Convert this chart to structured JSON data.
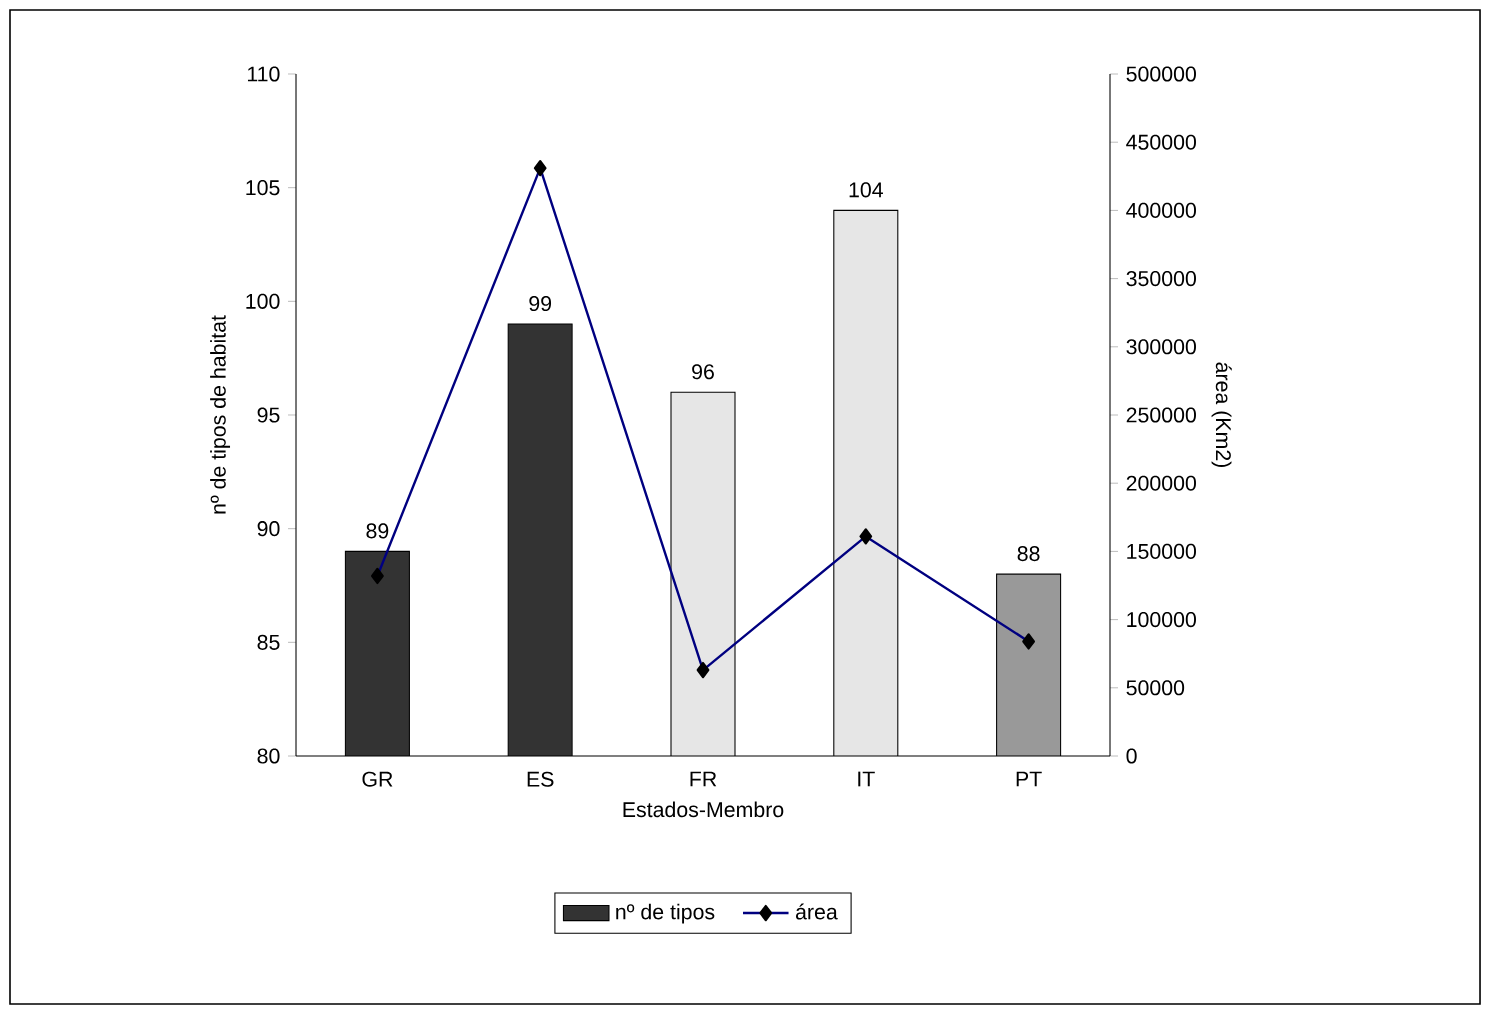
{
  "chart_data": {
    "type": "bar",
    "xlabel": "Estados-Membro",
    "ylabel": "nº de tipos de habitat",
    "y2label": "área (Km2)",
    "categories": [
      "GR",
      "ES",
      "FR",
      "IT",
      "PT"
    ],
    "series": [
      {
        "name": "nº de tipos",
        "colors": [
          "#333333",
          "#333333",
          "#e6e6e6",
          "#e6e6e6",
          "#999999"
        ],
        "values": [
          89,
          99,
          96,
          104,
          88
        ],
        "data_labels": true
      },
      {
        "name": "área",
        "type": "line",
        "axis": "y2",
        "color": "#000080",
        "values": [
          132000,
          431000,
          63000,
          161000,
          84000
        ]
      }
    ],
    "ylim": [
      80,
      110
    ],
    "yticks": [
      80,
      85,
      90,
      95,
      100,
      105,
      110
    ],
    "y2lim": [
      0,
      500000
    ],
    "y2ticks": [
      0,
      50000,
      100000,
      150000,
      200000,
      250000,
      300000,
      350000,
      400000,
      450000,
      500000
    ],
    "marker": "diamond",
    "legend": "bottom",
    "grid": false
  }
}
